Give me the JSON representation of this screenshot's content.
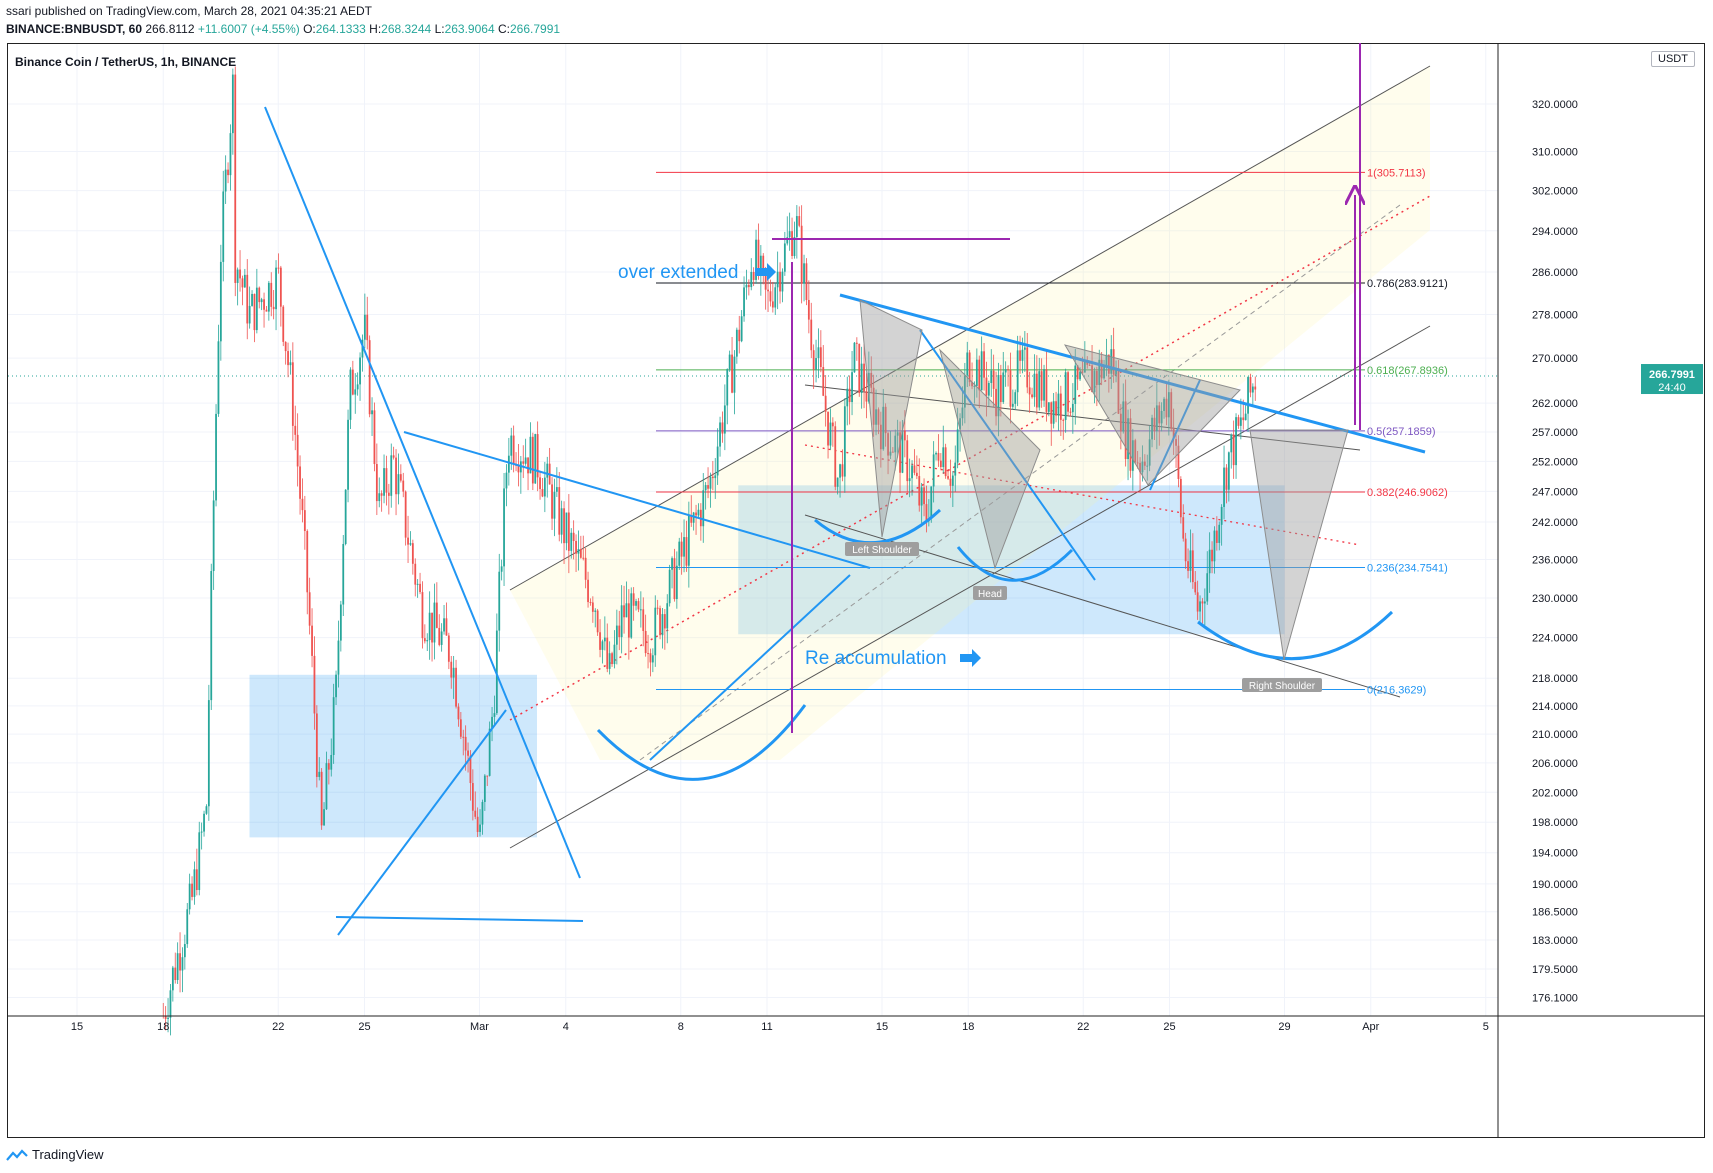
{
  "header": {
    "published": "ssari published on TradingView.com, March 28, 2021 04:35:21 AEDT",
    "symbol": "BINANCE:BNBUSDT, 60",
    "price": "266.8112",
    "change": "+11.6007 (+4.55%)",
    "open_label": "O:",
    "open": "264.1333",
    "high_label": "H:",
    "high": "268.3244",
    "low_label": "L:",
    "low": "263.9064",
    "close_label": "C:",
    "close": "266.7991"
  },
  "chart_title": "Binance Coin / TetherUS, 1h, BINANCE",
  "unit_badge": "USDT",
  "footer": {
    "brand": "TradingView"
  },
  "colors": {
    "up": "#26a69a",
    "down": "#ef5350",
    "trend": "#2196f3",
    "fib_red": "#f23645",
    "fib_green": "#4caf50",
    "fib_purple": "#7e57c2",
    "fib_blue": "#2196f3",
    "purple_arrow": "#9c27b0",
    "last_price_bg": "#26a69a"
  },
  "chart_data": {
    "type": "candlestick",
    "title": "Binance Coin / TetherUS, 1h, BINANCE",
    "y_scale": "log",
    "ylim": [
      174,
      330
    ],
    "y_ticks": [
      "320.0000",
      "310.0000",
      "302.0000",
      "294.0000",
      "286.0000",
      "278.0000",
      "270.0000",
      "262.0000",
      "257.0000",
      "252.0000",
      "247.0000",
      "242.0000",
      "236.0000",
      "230.0000",
      "224.0000",
      "218.0000",
      "214.0000",
      "210.0000",
      "206.0000",
      "202.0000",
      "198.0000",
      "194.0000",
      "190.0000",
      "186.5000",
      "183.0000",
      "179.5000",
      "176.1000"
    ],
    "x_ticks": [
      "15",
      "18",
      "22",
      "25",
      "Mar",
      "4",
      "8",
      "11",
      "15",
      "18",
      "22",
      "25",
      "29",
      "Apr",
      "5"
    ],
    "last_price": {
      "value": "266.7991",
      "countdown": "24:40"
    },
    "price_path": [
      {
        "date": "Feb 18",
        "close": 174
      },
      {
        "date": "Feb 19",
        "close": 188
      },
      {
        "date": "Feb 19",
        "close": 200
      },
      {
        "date": "Feb 20",
        "close": 290
      },
      {
        "date": "Feb 20",
        "close": 330
      },
      {
        "date": "Feb 20",
        "close": 300
      },
      {
        "date": "Feb 21",
        "close": 278
      },
      {
        "date": "Feb 22",
        "close": 285
      },
      {
        "date": "Feb 22",
        "close": 262
      },
      {
        "date": "Feb 23",
        "close": 232
      },
      {
        "date": "Feb 23",
        "close": 196
      },
      {
        "date": "Feb 24",
        "close": 215
      },
      {
        "date": "Feb 24",
        "close": 264
      },
      {
        "date": "Feb 25",
        "close": 275
      },
      {
        "date": "Feb 25",
        "close": 244
      },
      {
        "date": "Feb 26",
        "close": 252
      },
      {
        "date": "Feb 27",
        "close": 228
      },
      {
        "date": "Feb 28",
        "close": 222
      },
      {
        "date": "Mar 1",
        "close": 195
      },
      {
        "date": "Mar 1",
        "close": 215
      },
      {
        "date": "Mar 2",
        "close": 256
      },
      {
        "date": "Mar 3",
        "close": 252
      },
      {
        "date": "Mar 4",
        "close": 240
      },
      {
        "date": "Mar 5",
        "close": 230
      },
      {
        "date": "Mar 5",
        "close": 218
      },
      {
        "date": "Mar 6",
        "close": 228
      },
      {
        "date": "Mar 7",
        "close": 224
      },
      {
        "date": "Mar 8",
        "close": 236
      },
      {
        "date": "Mar 9",
        "close": 248
      },
      {
        "date": "Mar 10",
        "close": 274
      },
      {
        "date": "Mar 10",
        "close": 290
      },
      {
        "date": "Mar 11",
        "close": 280
      },
      {
        "date": "Mar 12",
        "close": 296
      },
      {
        "date": "Mar 12",
        "close": 276
      },
      {
        "date": "Mar 13",
        "close": 262
      },
      {
        "date": "Mar 13",
        "close": 248
      },
      {
        "date": "Mar 14",
        "close": 270
      },
      {
        "date": "Mar 15",
        "close": 258
      },
      {
        "date": "Mar 16",
        "close": 251
      },
      {
        "date": "Mar 16",
        "close": 242
      },
      {
        "date": "Mar 17",
        "close": 256
      },
      {
        "date": "Mar 17",
        "close": 249
      },
      {
        "date": "Mar 18",
        "close": 270
      },
      {
        "date": "Mar 19",
        "close": 264
      },
      {
        "date": "Mar 20",
        "close": 268
      },
      {
        "date": "Mar 21",
        "close": 262
      },
      {
        "date": "Mar 22",
        "close": 265
      },
      {
        "date": "Mar 23",
        "close": 270
      },
      {
        "date": "Mar 23",
        "close": 256
      },
      {
        "date": "Mar 24",
        "close": 252
      },
      {
        "date": "Mar 25",
        "close": 264
      },
      {
        "date": "Mar 25",
        "close": 238
      },
      {
        "date": "Mar 26",
        "close": 228
      },
      {
        "date": "Mar 26",
        "close": 238
      },
      {
        "date": "Mar 27",
        "close": 252
      },
      {
        "date": "Mar 27",
        "close": 258
      },
      {
        "date": "Mar 28",
        "close": 266.8
      }
    ],
    "fib_levels": [
      {
        "ratio": "1",
        "label": "1(305.7113)",
        "price": 305.7113,
        "color": "#f23645"
      },
      {
        "ratio": "0.786",
        "label": "0.786(283.9121)",
        "price": 283.9121,
        "color": "#131722"
      },
      {
        "ratio": "0.618",
        "label": "0.618(267.8936)",
        "price": 267.8936,
        "color": "#4caf50"
      },
      {
        "ratio": "0.5",
        "label": "0.5(257.1859)",
        "price": 257.1859,
        "color": "#7e57c2"
      },
      {
        "ratio": "0.382",
        "label": "0.382(246.9062)",
        "price": 246.9062,
        "color": "#f23645"
      },
      {
        "ratio": "0.236",
        "label": "0.236(234.7541)",
        "price": 234.7541,
        "color": "#2196f3"
      },
      {
        "ratio": "0",
        "label": "0(216.3629)",
        "price": 216.3629,
        "color": "#2196f3"
      }
    ],
    "annotations": [
      {
        "text": "over extended",
        "arrow": "right"
      },
      {
        "text": "Re accumulation",
        "arrow": "right"
      },
      {
        "text": "Left Shoulder"
      },
      {
        "text": "Head"
      },
      {
        "text": "Right Shoulder"
      }
    ],
    "zones": [
      {
        "from_date": "Feb 21",
        "to_date": "Mar 3",
        "low": 196,
        "high": 218.5
      },
      {
        "from_date": "Mar 10",
        "to_date": "Mar 29",
        "low": 224.5,
        "high": 248
      }
    ]
  }
}
